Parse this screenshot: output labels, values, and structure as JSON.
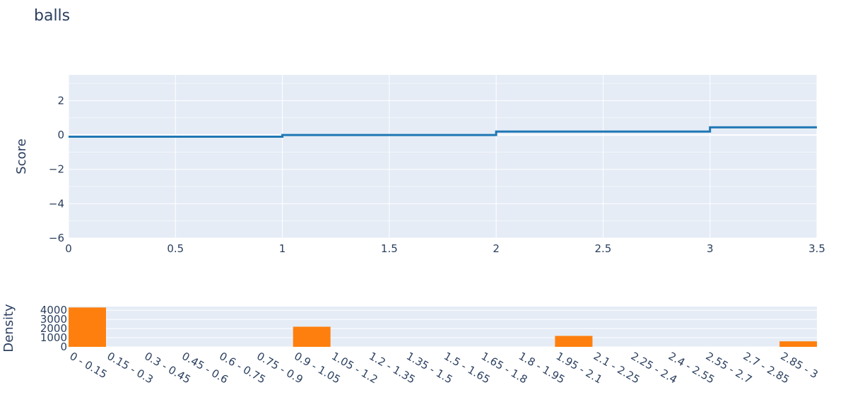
{
  "title": "balls",
  "colors": {
    "plot_bg": "#e5ecf6",
    "grid": "#ffffff",
    "line": "#1f77b4",
    "bar": "#ff7f0e",
    "text": "#2a3f5f"
  },
  "chart_data": [
    {
      "type": "line",
      "line_shape": "step",
      "title": "balls",
      "xlabel": "",
      "ylabel": "Score",
      "xlim": [
        0,
        3.5
      ],
      "ylim": [
        -6,
        3.5
      ],
      "x_ticks": [
        "0",
        "0.5",
        "1",
        "1.5",
        "2",
        "2.5",
        "3",
        "3.5"
      ],
      "y_ticks": [
        "2",
        "0",
        "−2",
        "−4",
        "−6"
      ],
      "grid": true,
      "series": [
        {
          "x": [
            0,
            1,
            1,
            2,
            2,
            3,
            3,
            3.5
          ],
          "y": [
            -0.1,
            -0.1,
            0.0,
            0.0,
            0.2,
            0.2,
            0.45,
            0.45
          ]
        }
      ]
    },
    {
      "type": "bar",
      "xlabel": "",
      "ylabel": "Density",
      "ylim": [
        0,
        4400
      ],
      "y_ticks": [
        "4000",
        "3000",
        "2000",
        "1000",
        "0"
      ],
      "grid": true,
      "categories": [
        "0 - 0.15",
        "0.15 - 0.3",
        "0.3 - 0.45",
        "0.45 - 0.6",
        "0.6 - 0.75",
        "0.75 - 0.9",
        "0.9 - 1.05",
        "1.05 - 1.2",
        "1.2 - 1.35",
        "1.35 - 1.5",
        "1.5 - 1.65",
        "1.65 - 1.8",
        "1.8 - 1.95",
        "1.95 - 2.1",
        "2.1 - 2.25",
        "2.25 - 2.4",
        "2.4 - 2.55",
        "2.55 - 2.7",
        "2.7 - 2.85",
        "2.85 - 3"
      ],
      "values": [
        4300,
        0,
        0,
        0,
        0,
        0,
        2200,
        0,
        0,
        0,
        0,
        0,
        0,
        1200,
        0,
        0,
        0,
        0,
        0,
        600
      ]
    }
  ]
}
